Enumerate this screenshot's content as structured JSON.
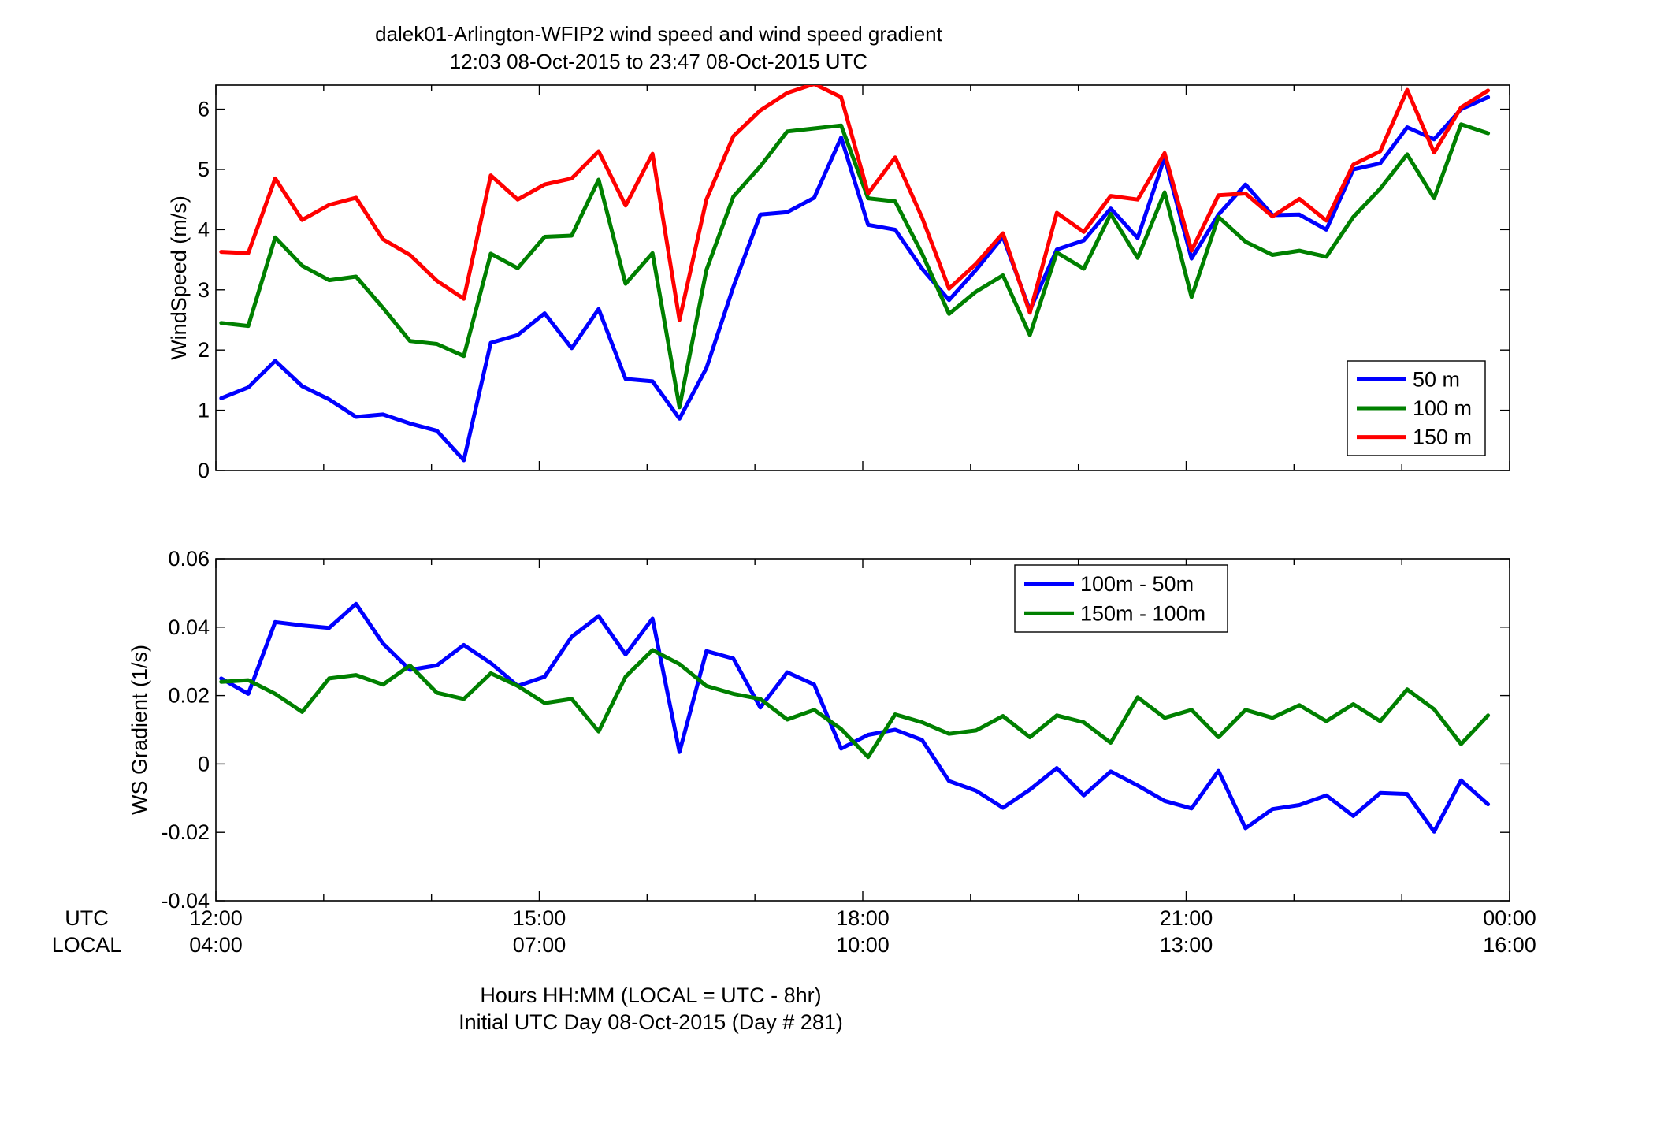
{
  "figure": {
    "title_line1": "dalek01-Arlington-WFIP2  wind speed and wind speed gradient",
    "title_line2": "12:03 08-Oct-2015 to 23:47 08-Oct-2015  UTC",
    "xlabel_line1": "Hours HH:MM  (LOCAL = UTC - 8hr)",
    "xlabel_line2": "Initial UTC Day 08-Oct-2015 (Day # 281)",
    "utc_row_label": "UTC",
    "local_row_label": "LOCAL",
    "x_ticks": [
      {
        "hour": 12,
        "utc": "12:00",
        "local": "04:00"
      },
      {
        "hour": 15,
        "utc": "15:00",
        "local": "07:00"
      },
      {
        "hour": 18,
        "utc": "18:00",
        "local": "10:00"
      },
      {
        "hour": 21,
        "utc": "21:00",
        "local": "13:00"
      },
      {
        "hour": 24,
        "utc": "00:00",
        "local": "16:00"
      }
    ]
  },
  "chart_data": [
    {
      "type": "line",
      "ylabel": "WindSpeed (m/s)",
      "xlim": [
        12,
        24
      ],
      "ylim": [
        0,
        6.4
      ],
      "yticks": [
        0,
        1,
        2,
        3,
        4,
        5,
        6
      ],
      "ytick_labels": [
        "0",
        "1",
        "2",
        "3",
        "4",
        "5",
        "6"
      ],
      "grid": false,
      "legend_position": "bottom-right",
      "x": [
        12.05,
        12.3,
        12.55,
        12.8,
        13.05,
        13.3,
        13.55,
        13.8,
        14.05,
        14.3,
        14.55,
        14.8,
        15.05,
        15.3,
        15.55,
        15.8,
        16.05,
        16.3,
        16.55,
        16.8,
        17.05,
        17.3,
        17.55,
        17.8,
        18.05,
        18.3,
        18.55,
        18.8,
        19.05,
        19.3,
        19.55,
        19.8,
        20.05,
        20.3,
        20.55,
        20.8,
        21.05,
        21.3,
        21.55,
        21.8,
        22.05,
        22.3,
        22.55,
        22.8,
        23.05,
        23.3,
        23.55,
        23.8
      ],
      "series": [
        {
          "name": "50 m",
          "color": "#0000ff",
          "values": [
            1.2,
            1.38,
            1.82,
            1.4,
            1.18,
            0.89,
            0.93,
            0.78,
            0.66,
            0.17,
            2.12,
            2.25,
            2.61,
            2.03,
            2.68,
            1.52,
            1.48,
            0.86,
            1.7,
            3.05,
            4.25,
            4.29,
            4.53,
            5.53,
            4.08,
            4.0,
            3.35,
            2.83,
            3.33,
            3.88,
            2.66,
            3.67,
            3.82,
            4.35,
            3.86,
            5.2,
            3.52,
            4.25,
            4.75,
            4.24,
            4.25,
            4.0,
            5.0,
            5.1,
            5.7,
            5.5,
            6.0,
            6.2
          ]
        },
        {
          "name": "100 m",
          "color": "#008000",
          "values": [
            2.45,
            2.4,
            3.87,
            3.4,
            3.16,
            3.22,
            2.7,
            2.15,
            2.1,
            1.9,
            3.6,
            3.36,
            3.88,
            3.9,
            4.83,
            3.1,
            3.61,
            1.05,
            3.33,
            4.55,
            5.05,
            5.63,
            5.68,
            5.73,
            4.52,
            4.47,
            3.6,
            2.6,
            2.97,
            3.24,
            2.25,
            3.62,
            3.35,
            4.26,
            3.53,
            4.62,
            2.88,
            4.21,
            3.8,
            3.58,
            3.65,
            3.55,
            4.21,
            4.68,
            5.25,
            4.52,
            5.75,
            5.6
          ]
        },
        {
          "name": "150 m",
          "color": "#ff0000",
          "values": [
            3.63,
            3.61,
            4.85,
            4.16,
            4.41,
            4.53,
            3.84,
            3.58,
            3.15,
            2.85,
            4.9,
            4.5,
            4.75,
            4.85,
            5.3,
            4.4,
            5.26,
            2.5,
            4.5,
            5.55,
            5.98,
            6.27,
            6.42,
            6.2,
            4.6,
            5.2,
            4.2,
            3.02,
            3.43,
            3.94,
            2.62,
            4.28,
            3.96,
            4.56,
            4.5,
            5.27,
            3.65,
            4.57,
            4.6,
            4.22,
            4.51,
            4.15,
            5.08,
            5.3,
            6.32,
            5.28,
            6.03,
            6.31
          ]
        }
      ]
    },
    {
      "type": "line",
      "ylabel": "WS Gradient (1/s)",
      "xlim": [
        12,
        24
      ],
      "ylim": [
        -0.04,
        0.06
      ],
      "yticks": [
        -0.04,
        -0.02,
        0,
        0.02,
        0.04,
        0.06
      ],
      "ytick_labels": [
        "-0.04",
        "-0.02",
        "0",
        "0.02",
        "0.04",
        "0.06"
      ],
      "grid": false,
      "legend_position": "top-center",
      "x": [
        12.05,
        12.3,
        12.55,
        12.8,
        13.05,
        13.3,
        13.55,
        13.8,
        14.05,
        14.3,
        14.55,
        14.8,
        15.05,
        15.3,
        15.55,
        15.8,
        16.05,
        16.3,
        16.55,
        16.8,
        17.05,
        17.3,
        17.55,
        17.8,
        18.05,
        18.3,
        18.55,
        18.8,
        19.05,
        19.3,
        19.55,
        19.8,
        20.05,
        20.3,
        20.55,
        20.8,
        21.05,
        21.3,
        21.55,
        21.8,
        22.05,
        22.3,
        22.55,
        22.8,
        23.05,
        23.3,
        23.55,
        23.8
      ],
      "series": [
        {
          "name": "100m - 50m",
          "color": "#0000ff",
          "values": [
            0.025,
            0.0205,
            0.0415,
            0.0405,
            0.0398,
            0.0468,
            0.0352,
            0.0275,
            0.0288,
            0.0348,
            0.0295,
            0.0228,
            0.0255,
            0.0372,
            0.0432,
            0.032,
            0.0425,
            0.0035,
            0.033,
            0.0308,
            0.0165,
            0.0268,
            0.0232,
            0.0045,
            0.0085,
            0.01,
            0.007,
            -0.005,
            -0.0078,
            -0.0128,
            -0.0075,
            -0.0012,
            -0.0092,
            -0.0022,
            -0.0063,
            -0.0108,
            -0.013,
            -0.002,
            -0.0188,
            -0.0132,
            -0.012,
            -0.0092,
            -0.0152,
            -0.0085,
            -0.0088,
            -0.0198,
            -0.0048,
            -0.0118
          ]
        },
        {
          "name": "150m - 100m",
          "color": "#008000",
          "values": [
            0.024,
            0.0245,
            0.0205,
            0.0152,
            0.025,
            0.026,
            0.0232,
            0.0288,
            0.0208,
            0.019,
            0.0265,
            0.0228,
            0.0178,
            0.019,
            0.0095,
            0.0255,
            0.0333,
            0.0292,
            0.0228,
            0.0205,
            0.019,
            0.013,
            0.0158,
            0.0102,
            0.002,
            0.0145,
            0.0122,
            0.0088,
            0.0098,
            0.014,
            0.0078,
            0.0142,
            0.0122,
            0.0062,
            0.0195,
            0.0135,
            0.0158,
            0.0078,
            0.0158,
            0.0135,
            0.0172,
            0.0125,
            0.0175,
            0.0125,
            0.0218,
            0.016,
            0.0058,
            0.0142
          ]
        }
      ]
    }
  ]
}
